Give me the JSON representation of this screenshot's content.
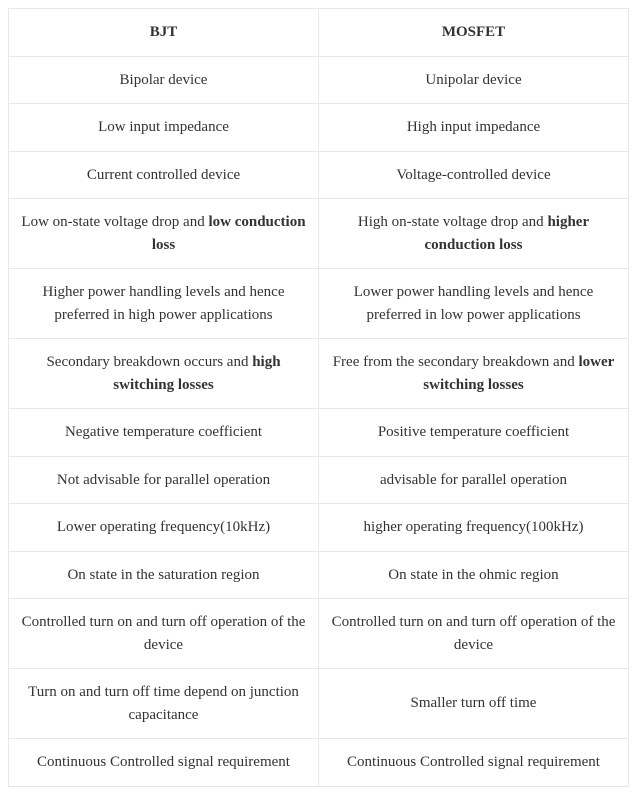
{
  "table": {
    "columns": [
      "BJT",
      "MOSFET"
    ],
    "rows": [
      {
        "bjt": "Bipolar device",
        "mosfet": "Unipolar device"
      },
      {
        "bjt": "Low input impedance",
        "mosfet": "High input impedance"
      },
      {
        "bjt": "Current controlled device",
        "mosfet": "Voltage-controlled device"
      },
      {
        "bjt_pre": "Low on-state voltage drop and ",
        "bjt_bold": "low conduction loss",
        "mosfet_pre": "High on-state voltage drop and ",
        "mosfet_bold": "higher conduction loss"
      },
      {
        "bjt": "Higher power handling levels and hence preferred in high power applications",
        "mosfet": "Lower power handling levels and hence preferred in low power applications"
      },
      {
        "bjt_pre": "Secondary breakdown occurs and ",
        "bjt_bold": "high switching losses",
        "mosfet_pre": "Free from the secondary breakdown and ",
        "mosfet_bold": "lower switching losses"
      },
      {
        "bjt": "Negative temperature coefficient",
        "mosfet": "Positive temperature coefficient"
      },
      {
        "bjt": "Not advisable for parallel operation",
        "mosfet": "advisable for parallel operation"
      },
      {
        "bjt": "Lower operating frequency(10kHz)",
        "mosfet": "higher operating frequency(100kHz)"
      },
      {
        "bjt": "On state in the saturation region",
        "mosfet": "On state in the ohmic region"
      },
      {
        "bjt": "Controlled turn on and turn off operation of the device",
        "mosfet": "Controlled turn on and turn off operation of the device"
      },
      {
        "bjt": "Turn on and turn off time depend on junction capacitance",
        "mosfet": "Smaller turn off time"
      },
      {
        "bjt": "Continuous Controlled signal requirement",
        "mosfet": "Continuous Controlled signal requirement"
      }
    ],
    "border_color": "#e8e8e8",
    "background_color": "#ffffff",
    "text_color": "#333333",
    "font_family": "Georgia, serif",
    "cell_fontsize": 15,
    "header_fontsize": 15
  }
}
